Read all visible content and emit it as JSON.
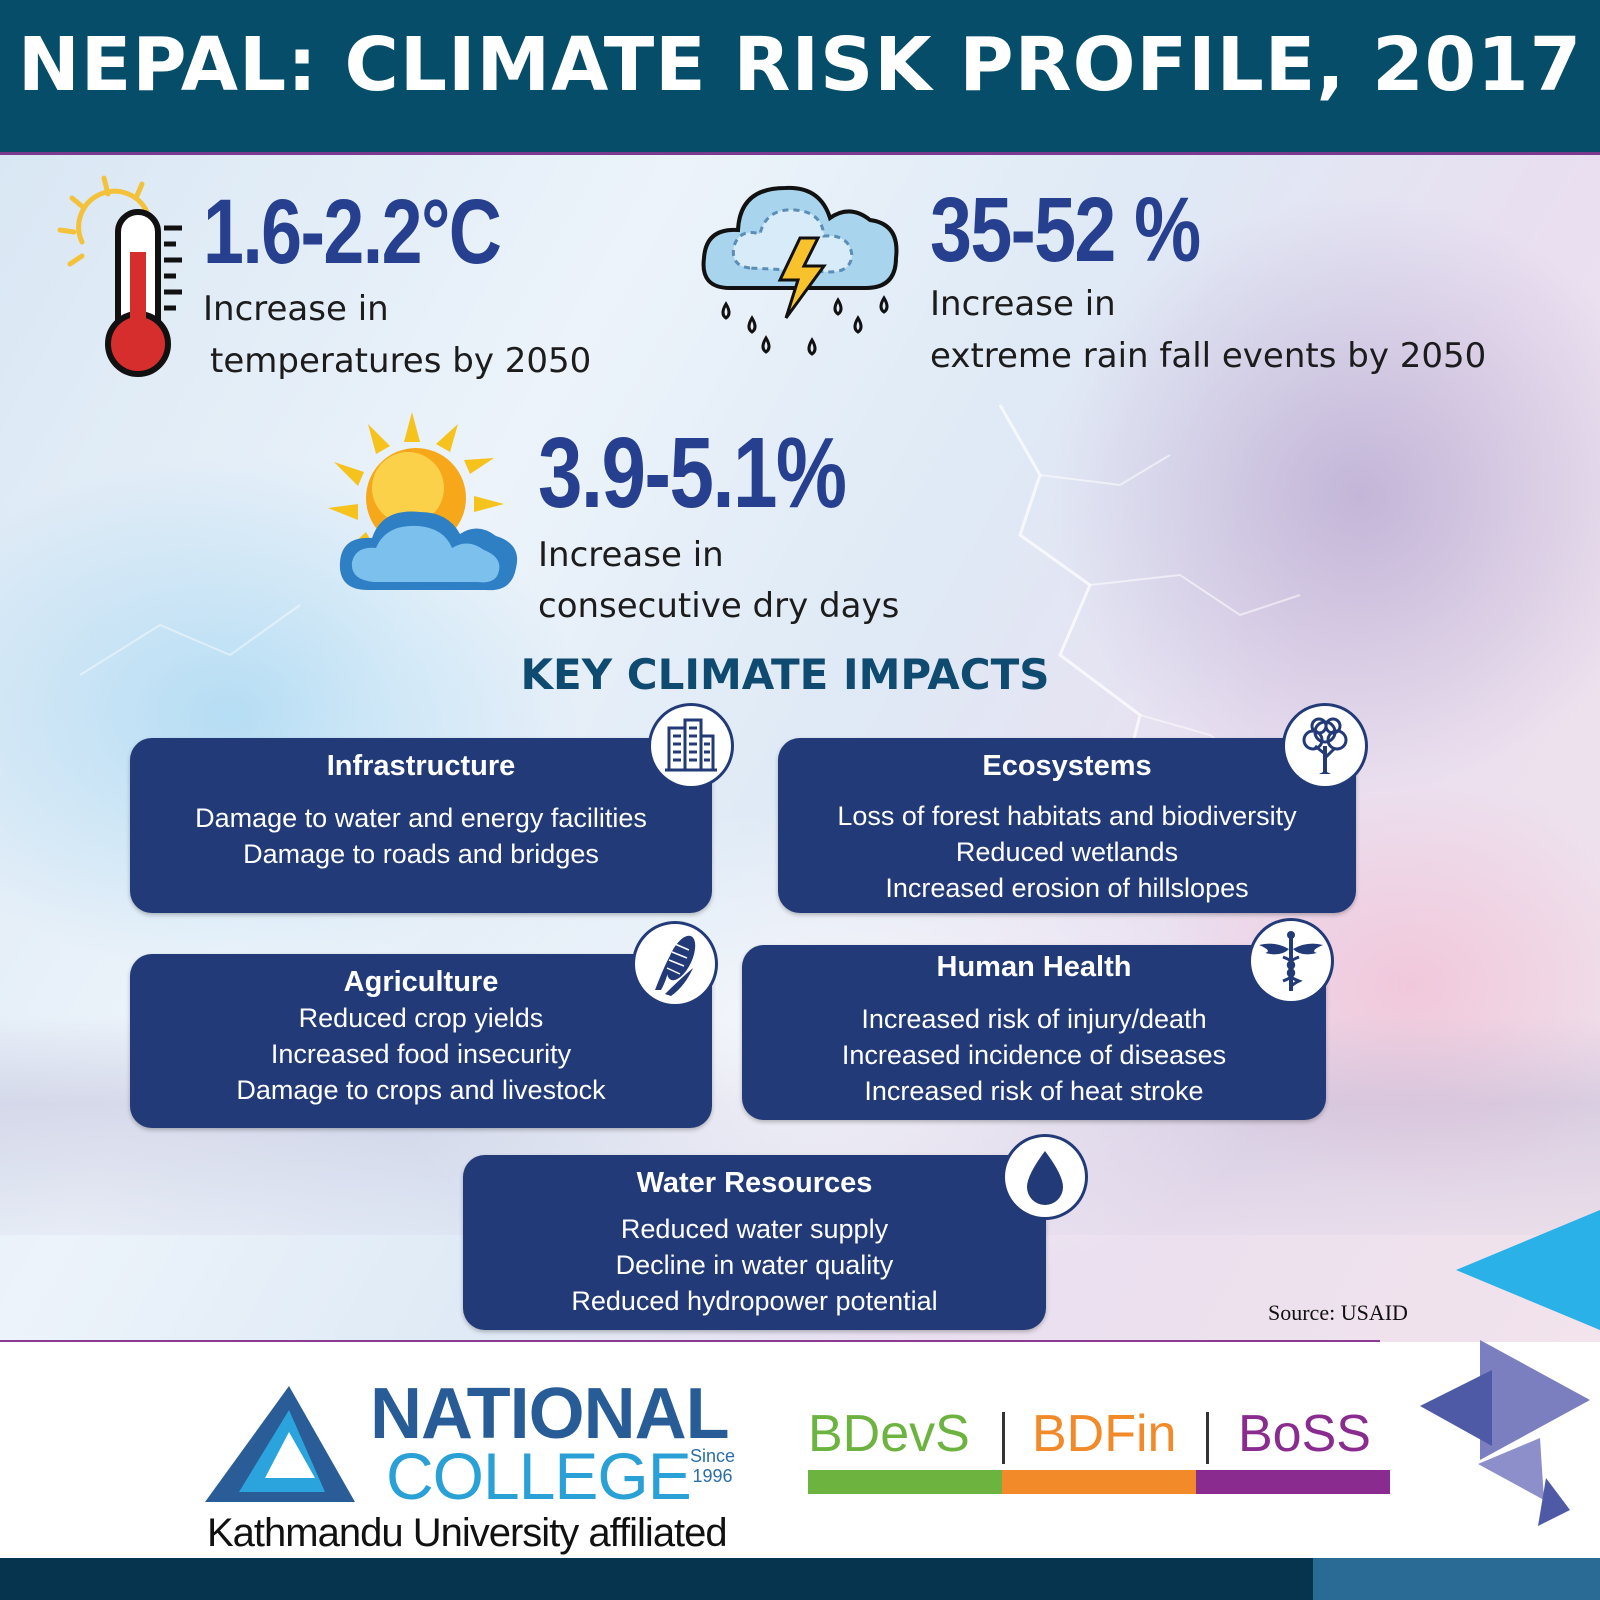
{
  "header": {
    "title": "NEPAL: CLIMATE RISK PROFILE, 2017"
  },
  "stats": [
    {
      "value": "1.6-2.2°C",
      "line1": "Increase in",
      "line2": "temperatures by 2050",
      "icon": "thermometer-icon"
    },
    {
      "value": "35-52 %",
      "line1": "Increase in",
      "line2": "extreme rain fall events by 2050",
      "icon": "storm-cloud-icon"
    },
    {
      "value": "3.9-5.1%",
      "line1": "Increase in",
      "line2": "consecutive dry days",
      "icon": "sun-cloud-icon"
    }
  ],
  "impacts": {
    "heading": "KEY CLIMATE IMPACTS",
    "cards": [
      {
        "title": "Infrastructure",
        "lines": [
          "Damage to water and energy facilities",
          "Damage to roads and bridges"
        ],
        "icon": "buildings-icon"
      },
      {
        "title": "Ecosystems",
        "lines": [
          "Loss of forest habitats and biodiversity",
          "Reduced wetlands",
          "Increased erosion of hillslopes"
        ],
        "icon": "tree-icon"
      },
      {
        "title": "Agriculture",
        "lines": [
          "Reduced crop yields",
          "Increased food insecurity",
          "Damage to crops and livestock"
        ],
        "icon": "corn-icon"
      },
      {
        "title": "Human Health",
        "lines": [
          "Increased risk of injury/death",
          "Increased incidence of diseases",
          "Increased risk of heat stroke"
        ],
        "icon": "caduceus-icon"
      },
      {
        "title": "Water Resources",
        "lines": [
          "Reduced water supply",
          "Decline in water quality",
          "Reduced hydropower potential"
        ],
        "icon": "water-drop-icon"
      }
    ]
  },
  "source": "Source: USAID",
  "footer": {
    "logo": {
      "name_line1": "NATIONAL",
      "name_line2": "COLLEGE",
      "since_label": "Since",
      "since_year": "1996",
      "affiliation": "Kathmandu University affiliated"
    },
    "programs": [
      {
        "label": "BDevS",
        "color": "#6cb33f"
      },
      {
        "label": "BDFin",
        "color": "#f28a2a"
      },
      {
        "label": "BoSS",
        "color": "#8a2c8f"
      }
    ]
  },
  "colors": {
    "header": "#054d68",
    "stat_value": "#263f8f",
    "card": "#223a77",
    "heading": "#0f4b70"
  }
}
